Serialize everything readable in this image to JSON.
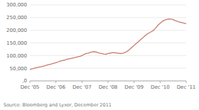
{
  "chart_data": {
    "type": "line",
    "color": "#c87b6a",
    "x": [
      0,
      1,
      2,
      3,
      4,
      5,
      6,
      7,
      8,
      9,
      10,
      11,
      12,
      13,
      14,
      15,
      16,
      17,
      18,
      19,
      20,
      21,
      22,
      23,
      24,
      25,
      26,
      27,
      28,
      29,
      30,
      31,
      32,
      33,
      34,
      35,
      36,
      37,
      38,
      39,
      40,
      41,
      42,
      43,
      44,
      45,
      46,
      47,
      48,
      49,
      50,
      51,
      52,
      53,
      54,
      55,
      56,
      57,
      58,
      59,
      60,
      61,
      62,
      63,
      64,
      65,
      66,
      67,
      68,
      69,
      70,
      71,
      72
    ],
    "values": [
      45000,
      47000,
      50000,
      52000,
      54000,
      56000,
      58000,
      60000,
      63000,
      65000,
      67000,
      70000,
      72000,
      75000,
      78000,
      80000,
      82000,
      85000,
      87000,
      89000,
      91000,
      93000,
      95000,
      97000,
      100000,
      105000,
      108000,
      110000,
      113000,
      115000,
      115000,
      113000,
      110000,
      108000,
      106000,
      105000,
      108000,
      110000,
      111000,
      112000,
      110000,
      109000,
      108000,
      110000,
      113000,
      118000,
      125000,
      133000,
      140000,
      148000,
      155000,
      163000,
      170000,
      178000,
      185000,
      190000,
      195000,
      200000,
      210000,
      220000,
      228000,
      235000,
      240000,
      243000,
      245000,
      244000,
      242000,
      238000,
      235000,
      232000,
      230000,
      228000,
      226000
    ],
    "xlim": [
      0,
      72
    ],
    "xticks": [
      {
        "value": 0,
        "label": "Dec '05"
      },
      {
        "value": 12,
        "label": "Dec '06"
      },
      {
        "value": 24,
        "label": "Dec '07"
      },
      {
        "value": 36,
        "label": "Dec '08"
      },
      {
        "value": 48,
        "label": "Dec '09"
      },
      {
        "value": 60,
        "label": "Dec '10"
      },
      {
        "value": 72,
        "label": "Dec '11"
      }
    ],
    "ylim": [
      0,
      300000
    ],
    "yticks": [
      {
        "value": 0,
        "label": ",0"
      },
      {
        "value": 50000,
        "label": "50,000"
      },
      {
        "value": 100000,
        "label": "100,000"
      },
      {
        "value": 150000,
        "label": "150,000"
      },
      {
        "value": 200000,
        "label": "200,000"
      },
      {
        "value": 250000,
        "label": "250,000"
      },
      {
        "value": 300000,
        "label": "300,000"
      }
    ],
    "grid": true,
    "annotations": [
      "Source: Bloomberg and Lyxor, December 2011"
    ]
  }
}
